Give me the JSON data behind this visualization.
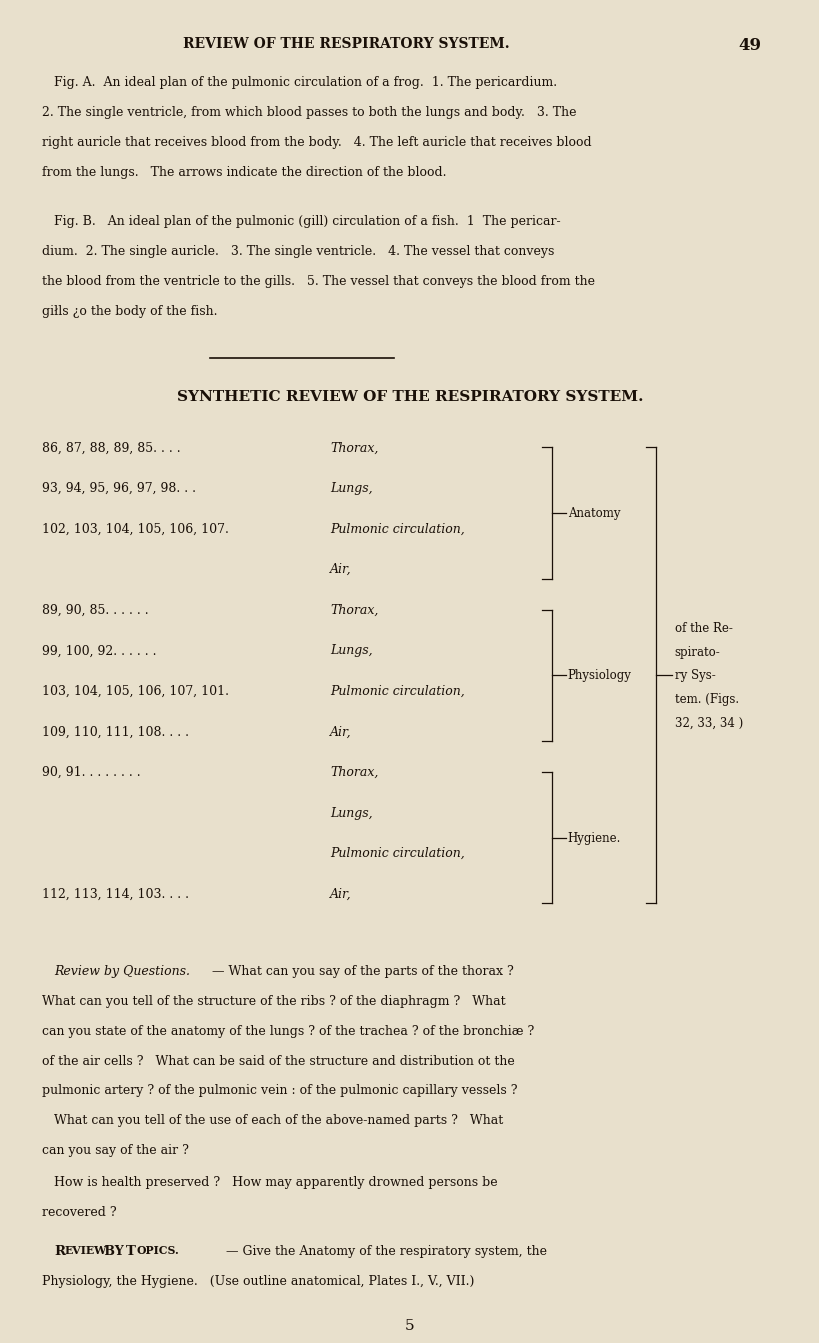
{
  "bg_color": "#e8e0cc",
  "text_color": "#1a1008",
  "page_width": 8.0,
  "page_height": 13.1,
  "header": "REVIEW OF THE RESPIRATORY SYSTEM.",
  "page_num": "49",
  "fig_a_text": [
    "Fig. A.  An ideal plan of the pulmonic circulation of a frog.  1. The pericardium.",
    "2. The single ventricle, from which blood passes to both the lungs and body.   3. The",
    "right auricle that receives blood from the body.   4. The left auricle that receives blood",
    "from the lungs.   The arrows indicate the direction of the blood."
  ],
  "fig_b_text": [
    "Fig. B.   An ideal plan of the pulmonic (gill) circulation of a fish.  1  The pericar-",
    "dium.  2. The single auricle.   3. The single ventricle.   4. The vessel that conveys",
    "the blood from the ventricle to the gills.   5. The vessel that conveys the blood from the",
    "giłls ¿o the body of the fish."
  ],
  "section_title": "SYNTHETIC REVIEW OF THE RESPIRATORY SYSTEM.",
  "table_lines": [
    {
      "nums": "86, 87, 88, 89, 85. . . .",
      "label": "Thorax,",
      "group": "anatomy"
    },
    {
      "nums": "93, 94, 95, 96, 97, 98. . .",
      "label": "Lungs,",
      "group": "anatomy"
    },
    {
      "nums": "102, 103, 104, 105, 106, 107.",
      "label": "Pulmonic circulation,",
      "group": "anatomy"
    },
    {
      "nums": "",
      "label": "Air,",
      "group": "anatomy"
    },
    {
      "nums": "89, 90, 85. . . . . .",
      "label": "Thorax,",
      "group": "physiology"
    },
    {
      "nums": "99, 100, 92. . . . . .",
      "label": "Lungs,",
      "group": "physiology"
    },
    {
      "nums": "103, 104, 105, 106, 107, 101.",
      "label": "Pulmonic circulation,",
      "group": "physiology"
    },
    {
      "nums": "109, 110, 111, 108. . . .",
      "label": "Air,",
      "group": "physiology"
    },
    {
      "nums": "90, 91. . . . . . . .",
      "label": "Thorax,",
      "group": "hygiene"
    },
    {
      "nums": "",
      "label": "Lungs,",
      "group": "hygiene"
    },
    {
      "nums": "",
      "label": "Pulmonic circulation,",
      "group": "hygiene"
    },
    {
      "nums": "112, 113, 114, 103. . . .",
      "label": "Air,",
      "group": "hygiene"
    }
  ],
  "anatomy_label": "Anatomy",
  "physiology_label": "Physiology",
  "hygiene_label": "Hygiene.",
  "big_brace_lines": [
    "of the Re-",
    "spirato-",
    "ry Sys-",
    "tem. (Figs.",
    "32, 33, 34 )"
  ],
  "rq_title": "Review by Questions.",
  "rq_lines": [
    "— What can you say of the parts of the thorax ?",
    "What can you tell of the structure of the ribs ? of the diaphragm ?   What",
    "can you state of the anatomy of the lungs ? of the trachea ? of the bronchiæ ?",
    "of the air cells ?   What can be said of the structure and distribution ot the",
    "pulmonic artery ? of the pulmonic vein : of the pulmonic capillary vessels ?",
    "   What can you tell of the use of each of the above-named parts ?   What",
    "can you say of the air ?"
  ],
  "how_lines": [
    "How is health preserved ?   How may apparently drowned persons be",
    "recovered ?"
  ],
  "rt_line1": "— Give the Anatomy of the respiratory system, the",
  "rt_line2": "Physiology, the Hygiene.   (Use outline anatomical, Plates I., V., VII.)",
  "page_num_bottom": "5"
}
